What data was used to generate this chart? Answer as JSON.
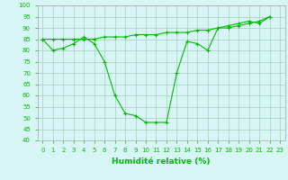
{
  "title": "",
  "xlabel": "Humidité relative (%)",
  "ylabel": "",
  "background_color": "#d8f5f5",
  "grid_color": "#aaccbb",
  "line_color": "#00bb00",
  "line1": [
    85,
    80,
    81,
    83,
    86,
    83,
    75,
    60,
    52,
    51,
    48,
    48,
    48,
    70,
    84,
    83,
    80,
    90,
    91,
    92,
    93,
    92,
    95
  ],
  "line2": [
    85,
    85,
    85,
    85,
    85,
    85,
    86,
    86,
    86,
    87,
    87,
    87,
    88,
    88,
    88,
    89,
    89,
    90,
    90,
    91,
    92,
    93,
    95
  ],
  "xlim": [
    -0.5,
    23.5
  ],
  "ylim": [
    40,
    100
  ],
  "yticks": [
    40,
    45,
    50,
    55,
    60,
    65,
    70,
    75,
    80,
    85,
    90,
    95,
    100
  ],
  "xticks": [
    0,
    1,
    2,
    3,
    4,
    5,
    6,
    7,
    8,
    9,
    10,
    11,
    12,
    13,
    14,
    15,
    16,
    17,
    18,
    19,
    20,
    21,
    22,
    23
  ],
  "xlabel_fontsize": 6.5,
  "tick_fontsize": 5.0,
  "figsize": [
    3.2,
    2.0
  ],
  "dpi": 100
}
